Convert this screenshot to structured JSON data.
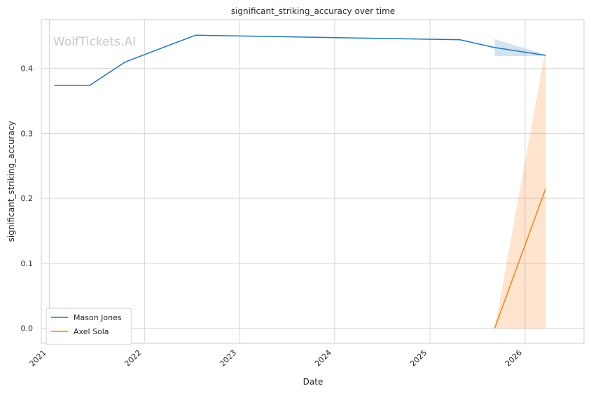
{
  "chart_data": {
    "type": "line",
    "title": "significant_striking_accuracy over time",
    "xlabel": "Date",
    "ylabel": "significant_striking_accuracy",
    "watermark": "WolfTickets.AI",
    "x_ticks": [
      "2021",
      "2022",
      "2023",
      "2024",
      "2025",
      "2026"
    ],
    "y_ticks": [
      "0.0",
      "0.1",
      "0.2",
      "0.3",
      "0.4"
    ],
    "xlim": [
      "2020-12-01",
      "2026-08-15"
    ],
    "ylim": [
      -0.023,
      0.475
    ],
    "grid": true,
    "legend_position": "lower-left",
    "series": [
      {
        "name": "Mason Jones",
        "color": "#1f77b4",
        "points": [
          {
            "x": "2021-01-20",
            "y": 0.374
          },
          {
            "x": "2021-06-05",
            "y": 0.374
          },
          {
            "x": "2021-10-20",
            "y": 0.41
          },
          {
            "x": "2022-07-16",
            "y": 0.451
          },
          {
            "x": "2025-04-26",
            "y": 0.444
          },
          {
            "x": "2025-09-06",
            "y": 0.432
          },
          {
            "x": "2026-03-21",
            "y": 0.42
          }
        ],
        "band": [
          {
            "x": "2025-09-06",
            "lo": 0.419,
            "hi": 0.445
          },
          {
            "x": "2026-03-21",
            "lo": 0.419,
            "hi": 0.421
          }
        ]
      },
      {
        "name": "Axel Sola",
        "color": "#ff7f0e",
        "points": [
          {
            "x": "2025-09-06",
            "y": 0.0
          },
          {
            "x": "2026-03-21",
            "y": 0.215
          }
        ],
        "band": [
          {
            "x": "2025-09-06",
            "lo": 0.0,
            "hi": 0.0
          },
          {
            "x": "2026-03-21",
            "lo": 0.0,
            "hi": 0.43
          }
        ]
      }
    ]
  }
}
